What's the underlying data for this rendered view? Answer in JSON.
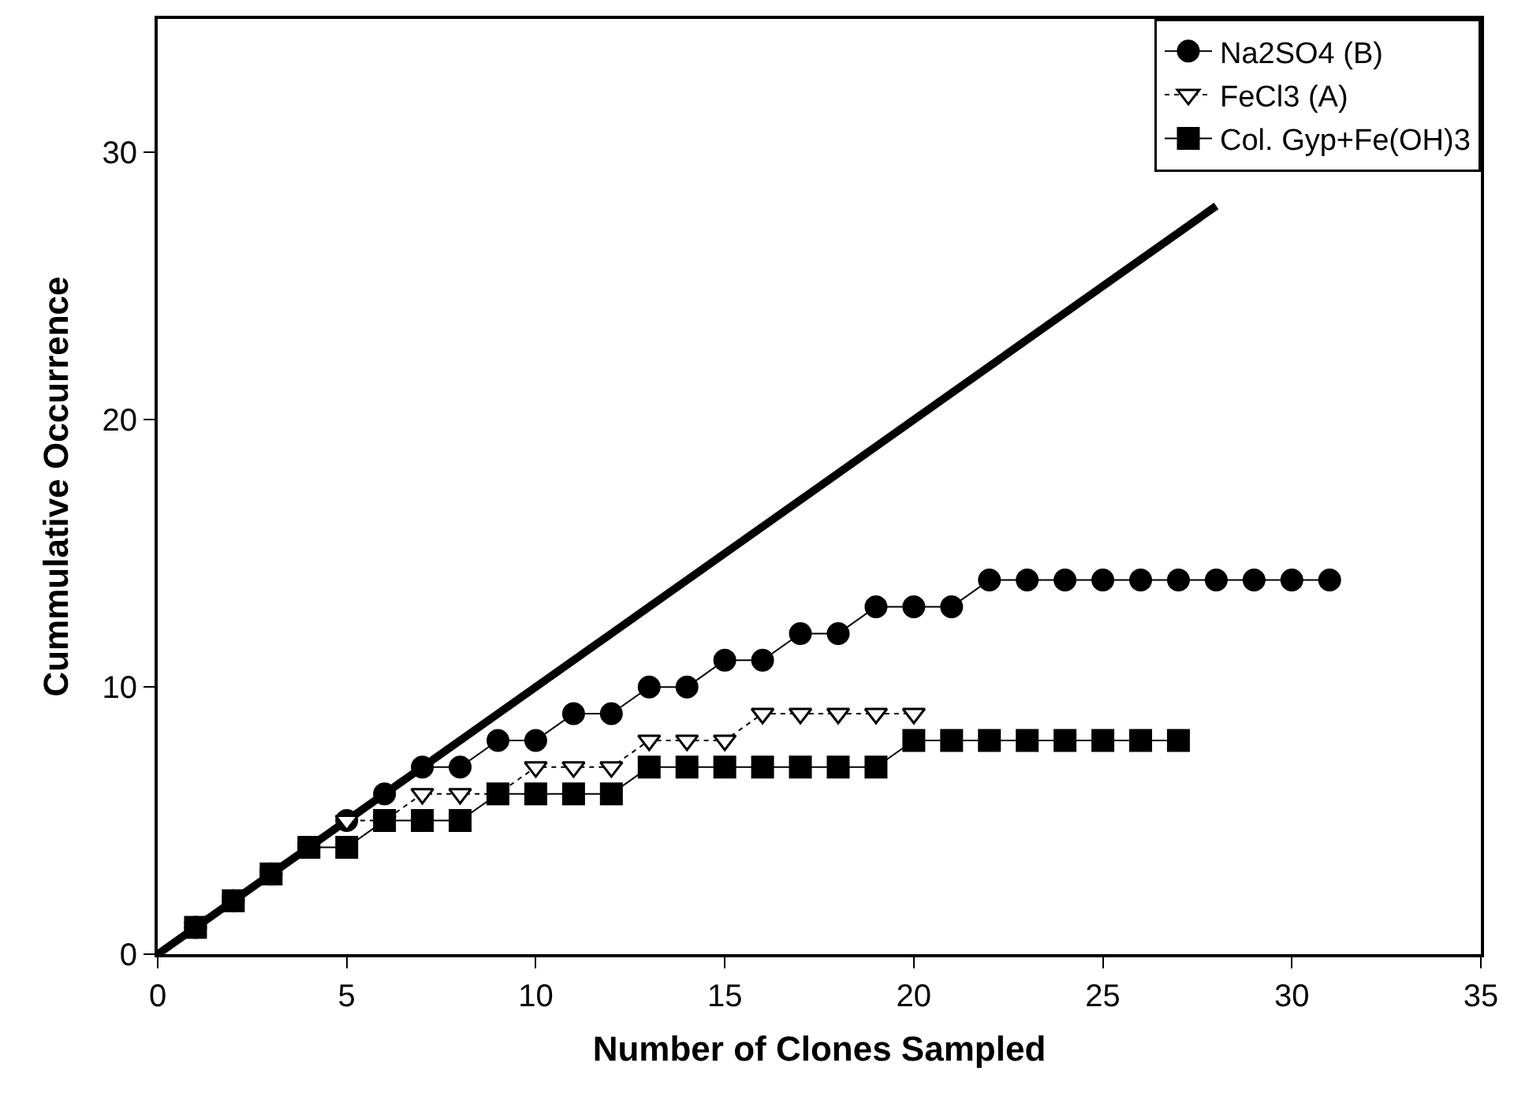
{
  "chart_data": {
    "type": "line",
    "xlabel": "Number of Clones Sampled",
    "ylabel": "Cummulative Occurrence",
    "xlim": [
      0,
      35
    ],
    "xticks": [
      0,
      5,
      10,
      15,
      20,
      25,
      30,
      35
    ],
    "ylim": [
      0,
      35
    ],
    "yticks": [
      0,
      10,
      20,
      30
    ],
    "legend": "top right",
    "series": [
      {
        "color": "#000000",
        "x": [
          0,
          28
        ],
        "values": [
          0,
          28
        ],
        "marker": "none",
        "line_style": "solid"
      },
      {
        "name": "Na2SO4 (B)",
        "color": "#000000",
        "marker": "circle",
        "line_style": "solid",
        "x": [
          1,
          2,
          3,
          4,
          5,
          6,
          7,
          8,
          9,
          10,
          11,
          12,
          13,
          14,
          15,
          16,
          17,
          18,
          19,
          20,
          21,
          22,
          23,
          24,
          25,
          26,
          27,
          28,
          29,
          30,
          31
        ],
        "values": [
          1,
          2,
          3,
          4,
          5,
          6,
          7,
          7,
          8,
          8,
          9,
          9,
          10,
          10,
          11,
          11,
          12,
          12,
          13,
          13,
          13,
          14,
          14,
          14,
          14,
          14,
          14,
          14,
          14,
          14,
          14
        ]
      },
      {
        "name": "FeCl3 (A)",
        "color": "#000000",
        "marker": "triangle",
        "line_style": "dotted",
        "x": [
          1,
          2,
          3,
          4,
          5,
          6,
          7,
          8,
          9,
          10,
          11,
          12,
          13,
          14,
          15,
          16,
          17,
          18,
          19,
          20
        ],
        "values": [
          1,
          2,
          3,
          4,
          5,
          5,
          6,
          6,
          6,
          7,
          7,
          7,
          8,
          8,
          8,
          9,
          9,
          9,
          9,
          9
        ]
      },
      {
        "name": "Col. Gyp+Fe(OH)3",
        "color": "#000000",
        "marker": "square",
        "line_style": "solid",
        "x": [
          1,
          2,
          3,
          4,
          5,
          6,
          7,
          8,
          9,
          10,
          11,
          12,
          13,
          14,
          15,
          16,
          17,
          18,
          19,
          20,
          21,
          22,
          23,
          24,
          25,
          26,
          27
        ],
        "values": [
          1,
          2,
          3,
          4,
          4,
          5,
          5,
          5,
          6,
          6,
          6,
          6,
          7,
          7,
          7,
          7,
          7,
          7,
          7,
          8,
          8,
          8,
          8,
          8,
          8,
          8,
          8
        ]
      }
    ]
  }
}
